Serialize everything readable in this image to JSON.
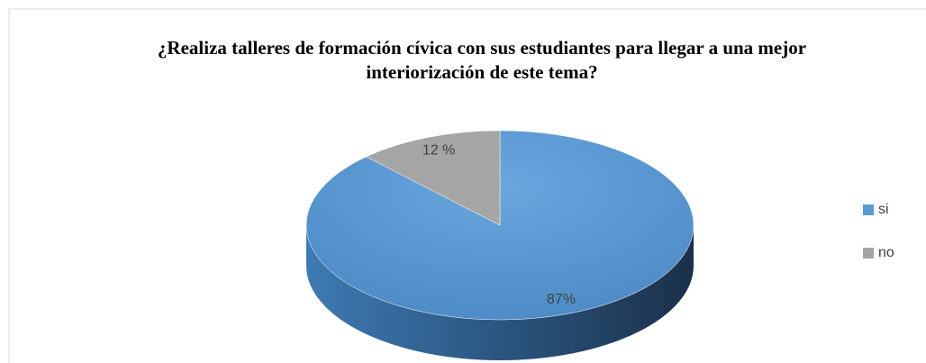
{
  "chart_data": {
    "type": "pie3d",
    "title": "¿Realiza talleres de formación cívica con sus estudiantes para llegar a una mejor interiorización de este tema?",
    "categories": [
      "si",
      "no"
    ],
    "values": [
      87,
      12
    ],
    "value_labels": [
      "87%",
      "12 %"
    ],
    "colors": [
      "#5b9bd5",
      "#a5a5a5"
    ],
    "legend": "right"
  }
}
